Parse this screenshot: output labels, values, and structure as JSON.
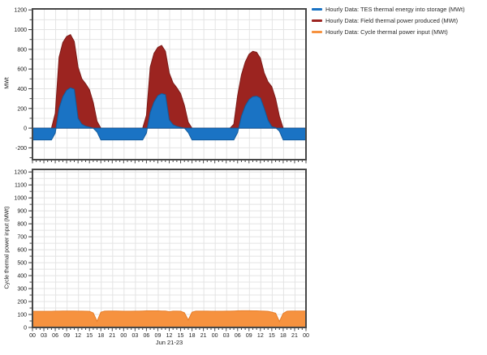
{
  "legend": {
    "items": [
      {
        "label": "Hourly Data: TES thermal energy into storage (MWt)",
        "color": "#1a73c4"
      },
      {
        "label": "Hourly Data: Field thermal power produced (MWt)",
        "color": "#9c2420"
      },
      {
        "label": "Hourly Data: Cycle thermal power input (MWt)",
        "color": "#f6923f"
      }
    ]
  },
  "x_axis": {
    "label": "Jun 21-23",
    "tick_labels": [
      "00",
      "03",
      "06",
      "09",
      "12",
      "15",
      "18",
      "21",
      "00",
      "03",
      "06",
      "09",
      "12",
      "15",
      "18",
      "21",
      "00",
      "03",
      "06",
      "09",
      "12",
      "15",
      "18",
      "21",
      "00"
    ],
    "tick_interval_hours": 3,
    "range_hours": [
      0,
      72
    ]
  },
  "colors": {
    "grid": "#e4e4e4",
    "border": "#474747",
    "tick_text": "#1a1a1a"
  },
  "chart_data": [
    {
      "type": "area",
      "title": "",
      "ylabel": "MWt",
      "xlabel": "",
      "ylim": [
        -200,
        1200
      ],
      "ytick_labels": [
        "1200",
        "1000",
        "800",
        "600",
        "400",
        "200",
        "0",
        "-200"
      ],
      "ytick_values": [
        1200,
        1000,
        800,
        600,
        400,
        200,
        0,
        -200
      ],
      "grid": true,
      "legend_position": "top-right-outside",
      "series": [
        {
          "name": "Hourly Data: Field thermal power produced (MWt)",
          "fill": "#9c2420",
          "edge": "#7c1b18",
          "values": [
            0,
            0,
            0,
            0,
            0,
            0,
            150,
            720,
            870,
            930,
            950,
            880,
            620,
            500,
            450,
            390,
            260,
            70,
            0,
            0,
            0,
            0,
            0,
            0,
            0,
            0,
            0,
            0,
            0,
            0,
            130,
            620,
            760,
            820,
            840,
            780,
            560,
            460,
            410,
            350,
            230,
            60,
            0,
            0,
            0,
            0,
            0,
            0,
            0,
            0,
            0,
            0,
            0,
            40,
            330,
            540,
            670,
            750,
            780,
            770,
            710,
            560,
            470,
            420,
            300,
            120,
            0,
            0,
            0,
            0,
            0,
            0,
            0
          ]
        },
        {
          "name": "Hourly Data: TES thermal energy into storage (MWt)",
          "fill": "#1a73c4",
          "edge": "#115a9c",
          "values": [
            -120,
            -120,
            -120,
            -120,
            -120,
            -120,
            -50,
            200,
            320,
            385,
            410,
            395,
            100,
            40,
            20,
            10,
            0,
            -40,
            -120,
            -120,
            -120,
            -120,
            -120,
            -120,
            -120,
            -120,
            -120,
            -120,
            -120,
            -120,
            -50,
            160,
            265,
            330,
            350,
            340,
            85,
            35,
            18,
            8,
            0,
            -45,
            -120,
            -120,
            -120,
            -120,
            -120,
            -120,
            -120,
            -120,
            -120,
            -120,
            -120,
            -120,
            -45,
            120,
            225,
            290,
            320,
            325,
            305,
            200,
            80,
            15,
            5,
            -30,
            -120,
            -120,
            -120,
            -120,
            -120,
            -120,
            -120
          ]
        }
      ]
    },
    {
      "type": "area",
      "title": "",
      "ylabel": "Cycle thermal power input (MWt)",
      "xlabel": "Jun 21-23",
      "ylim": [
        0,
        1200
      ],
      "ytick_labels": [
        "1200",
        "1100",
        "1000",
        "900",
        "800",
        "700",
        "600",
        "500",
        "400",
        "300",
        "200",
        "100",
        "0"
      ],
      "ytick_values": [
        1200,
        1100,
        1000,
        900,
        800,
        700,
        600,
        500,
        400,
        300,
        200,
        100,
        0
      ],
      "grid": true,
      "series": [
        {
          "name": "Hourly Data: Cycle thermal power input (MWt)",
          "fill": "#f6923f",
          "edge": "#e67e2a",
          "values": [
            124,
            124,
            124,
            124,
            124,
            124,
            126,
            126,
            127,
            127,
            127,
            127,
            126,
            126,
            125,
            124,
            112,
            48,
            118,
            126,
            127,
            127,
            127,
            126,
            125,
            125,
            125,
            126,
            126,
            127,
            128,
            128,
            128,
            128,
            127,
            127,
            121,
            126,
            126,
            125,
            113,
            58,
            118,
            126,
            126,
            126,
            126,
            125,
            125,
            125,
            125,
            126,
            126,
            127,
            128,
            129,
            129,
            129,
            128,
            128,
            127,
            126,
            124,
            118,
            110,
            46,
            108,
            125,
            127,
            127,
            127,
            127,
            127
          ]
        }
      ]
    }
  ]
}
